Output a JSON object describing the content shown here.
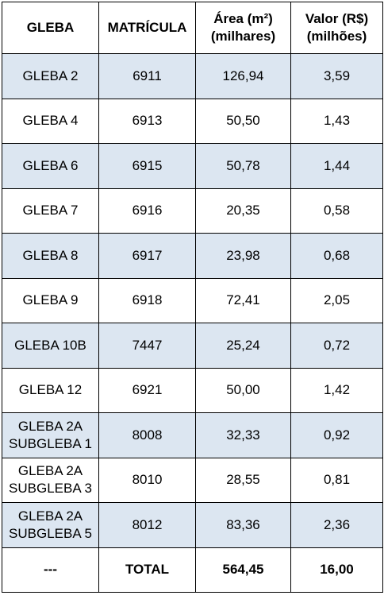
{
  "table": {
    "header": [
      "GLEBA",
      "MATRÍCULA",
      "Área (m²) (milhares)",
      "Valor (R$) (milhões)"
    ],
    "rows": [
      [
        "GLEBA 2",
        "6911",
        "126,94",
        "3,59"
      ],
      [
        "GLEBA 4",
        "6913",
        "50,50",
        "1,43"
      ],
      [
        "GLEBA 6",
        "6915",
        "50,78",
        "1,44"
      ],
      [
        "GLEBA 7",
        "6916",
        "20,35",
        "0,58"
      ],
      [
        "GLEBA 8",
        "6917",
        "23,98",
        "0,68"
      ],
      [
        "GLEBA 9",
        "6918",
        "72,41",
        "2,05"
      ],
      [
        "GLEBA 10B",
        "7447",
        "25,24",
        "0,72"
      ],
      [
        "GLEBA 12",
        "6921",
        "50,00",
        "1,42"
      ],
      [
        "GLEBA 2A SUBGLEBA 1",
        "8008",
        "32,33",
        "0,92"
      ],
      [
        "GLEBA 2A SUBGLEBA 3",
        "8010",
        "28,55",
        "0,81"
      ],
      [
        "GLEBA 2A SUBGLEBA 5",
        "8012",
        "83,36",
        "2,36"
      ]
    ],
    "total": [
      "---",
      "TOTAL",
      "564,45",
      "16,00"
    ]
  }
}
